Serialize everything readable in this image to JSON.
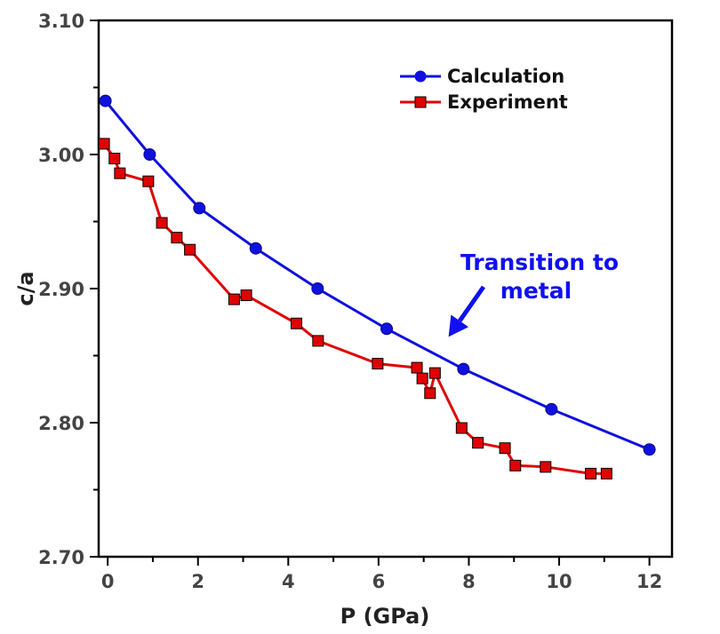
{
  "chart_data": {
    "type": "line",
    "xlabel": "P (GPa)",
    "ylabel": "c/a",
    "xlim": [
      -0.2,
      12.5
    ],
    "ylim": [
      2.7,
      3.1
    ],
    "xticks": [
      0,
      2,
      4,
      6,
      8,
      10,
      12
    ],
    "yticks": [
      2.7,
      2.8,
      2.9,
      3.0,
      3.1
    ],
    "ytick_labels": [
      "2.70",
      "2.80",
      "2.90",
      "3.00",
      "3.10"
    ],
    "legend_position": "top-right",
    "series": [
      {
        "name": "Calculation",
        "color": "#1010e0",
        "marker": "circle",
        "x": [
          -0.05,
          0.93,
          2.03,
          3.28,
          4.65,
          6.18,
          7.88,
          9.83,
          12.0
        ],
        "y": [
          3.04,
          3.0,
          2.96,
          2.93,
          2.9,
          2.87,
          2.84,
          2.81,
          2.78
        ]
      },
      {
        "name": "Experiment",
        "color": "#e00000",
        "marker": "square",
        "x": [
          -0.08,
          0.15,
          0.27,
          0.9,
          1.2,
          1.53,
          1.82,
          2.8,
          3.07,
          4.18,
          4.66,
          5.98,
          6.85,
          6.97,
          7.14,
          7.25,
          7.84,
          8.2,
          8.8,
          9.03,
          9.7,
          10.7,
          11.05
        ],
        "y": [
          3.008,
          2.997,
          2.986,
          2.98,
          2.949,
          2.938,
          2.929,
          2.892,
          2.895,
          2.874,
          2.861,
          2.844,
          2.841,
          2.833,
          2.822,
          2.837,
          2.796,
          2.785,
          2.781,
          2.768,
          2.767,
          2.762,
          2.762
        ]
      }
    ],
    "annotation": {
      "lines": [
        "Transition to",
        "metal"
      ],
      "arrow_target": [
        7.55,
        2.864
      ]
    }
  }
}
